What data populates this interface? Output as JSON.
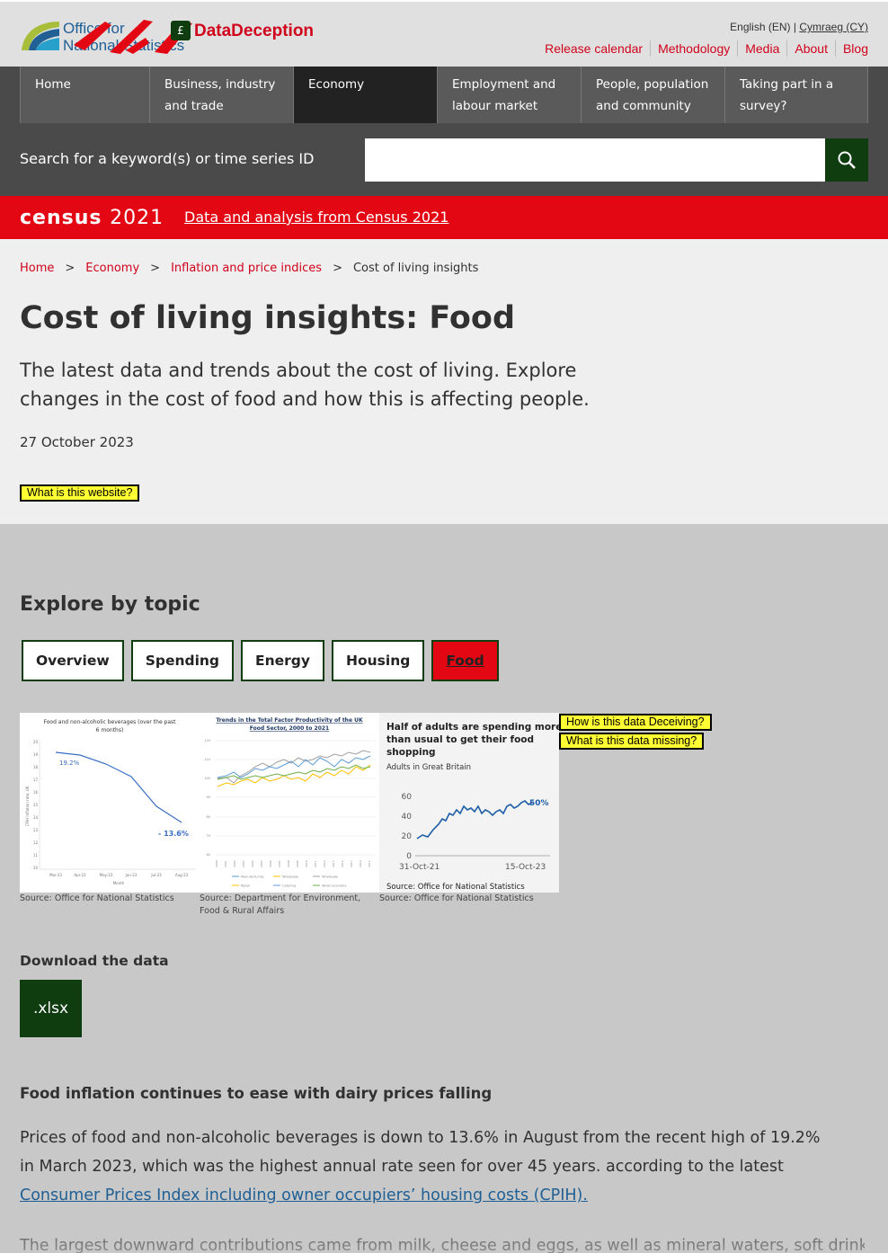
{
  "header": {
    "logo_line1": "Office for",
    "logo_line2": "National Statistics",
    "brand": "DataDeception",
    "lang_current": "English (EN) |",
    "lang_other": "Cymraeg (CY)",
    "links": [
      "Release calendar",
      "Methodology",
      "Media",
      "About",
      "Blog"
    ]
  },
  "nav": {
    "items": [
      {
        "label": "Home"
      },
      {
        "label": "Business, industry and trade"
      },
      {
        "label": "Economy"
      },
      {
        "label": "Employment and labour market"
      },
      {
        "label": "People, population and community"
      },
      {
        "label": "Taking part in a survey?"
      }
    ]
  },
  "search": {
    "label": "Search for a keyword(s) or time series ID",
    "value": ""
  },
  "census": {
    "logo_a": "census",
    "logo_b": "2021",
    "link": "Data and analysis from Census 2021"
  },
  "breadcrumb": [
    "Home",
    "Economy",
    "Inflation and price indices",
    "Cost of living insights"
  ],
  "page": {
    "title": "Cost of living insights: Food",
    "description": "The latest data and trends about the cost of living. Explore changes in the cost of food and how this is affecting people.",
    "date": "27 October 2023",
    "what_website": "What is this website?"
  },
  "explore": {
    "title": "Explore by topic",
    "topics": [
      "Overview",
      "Spending",
      "Energy",
      "Housing",
      "Food"
    ],
    "active": "Food"
  },
  "deceive": {
    "q1": "How is this data Deceiving?",
    "q2": "What is this data missing?"
  },
  "figures": [
    {
      "title": "Food and non-alcoholic beverages (over the past 6 months)",
      "ylabel": "CPIH Inflation rate, UK",
      "xlabel": "Month",
      "x_ticks": [
        "Mar-23",
        "Apr-23",
        "May-23",
        "Jun-23",
        "Jul-23",
        "Aug-23"
      ],
      "y_ticks": [
        "20",
        "19",
        "18",
        "17",
        "16",
        "15",
        "14",
        "13",
        "12",
        "11",
        "10"
      ],
      "label_high": "19.2%",
      "label_low": "- 13.6%",
      "caption": "Source: Office for National Statistics"
    },
    {
      "title": "Trends in the Total Factor Productivity of the UK Food Sector, 2000 to 2021",
      "legend": [
        "Manufacturing",
        "Wholesale",
        "Wholesale",
        "Retail",
        "Catering",
        "Wider economy"
      ],
      "caption": "Source: Department for Environment, Food & Rural Affairs"
    },
    {
      "title": "Half of adults are spending more than usual to get their food shopping",
      "subtitle": "Adults in Great Britain",
      "y_ticks": [
        "60",
        "40",
        "20",
        "0"
      ],
      "x_ticks": [
        "31-Oct-21",
        "15-Oct-23"
      ],
      "end_label": "50%",
      "source_in_chart": "Source: Office for National Statistics",
      "caption": "Source: Office for National Statistics"
    }
  ],
  "download": {
    "title": "Download the data",
    "button": ".xlsx"
  },
  "section": {
    "title": "Food inflation continues to ease with dairy prices falling",
    "para1_text": "Prices of food and non-alcoholic beverages is down to 13.6% in August from the recent high of 19.2% in March 2023, which was the highest annual rate seen for over 45 years. according to the latest ",
    "para1_link": "Consumer Prices Index including owner occupiers’ housing costs (CPIH).",
    "para2": "The largest downward contributions came from milk, cheese and eggs, as well as mineral waters, soft drinks"
  },
  "colors": {
    "ons_red": "#d0021b",
    "census_red": "#e30613",
    "dark_green": "#0f3d10",
    "nav_grey": "#4a4a4a",
    "highlight_yellow": "#ffff33",
    "link_blue": "#206095"
  }
}
